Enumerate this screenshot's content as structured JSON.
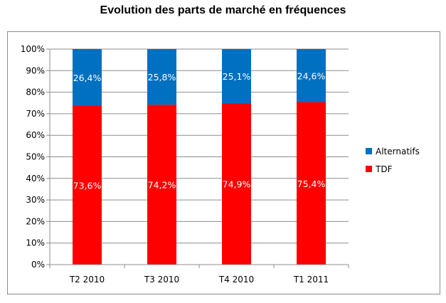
{
  "chart_data": {
    "type": "bar",
    "stacked": true,
    "title": "Evolution des parts de marché en fréquences",
    "xlabel": "",
    "ylabel": "",
    "ylim": [
      0,
      100
    ],
    "yticks": [
      "0%",
      "10%",
      "20%",
      "30%",
      "40%",
      "50%",
      "60%",
      "70%",
      "80%",
      "90%",
      "100%"
    ],
    "categories": [
      "T2 2010",
      "T3 2010",
      "T4 2010",
      "T1 2011"
    ],
    "series": [
      {
        "name": "TDF",
        "color": "#ff0000",
        "values": [
          73.6,
          74.2,
          74.9,
          75.4
        ],
        "labels": [
          "73,6%",
          "74,2%",
          "74,9%",
          "75,4%"
        ]
      },
      {
        "name": "Alternatifs",
        "color": "#0070c0",
        "values": [
          26.4,
          25.8,
          25.1,
          24.6
        ],
        "labels": [
          "26,4%",
          "25,8%",
          "25,1%",
          "24,6%"
        ]
      }
    ],
    "legend": {
      "position": "right",
      "entries": [
        "Alternatifs",
        "TDF"
      ]
    },
    "grid": true
  }
}
